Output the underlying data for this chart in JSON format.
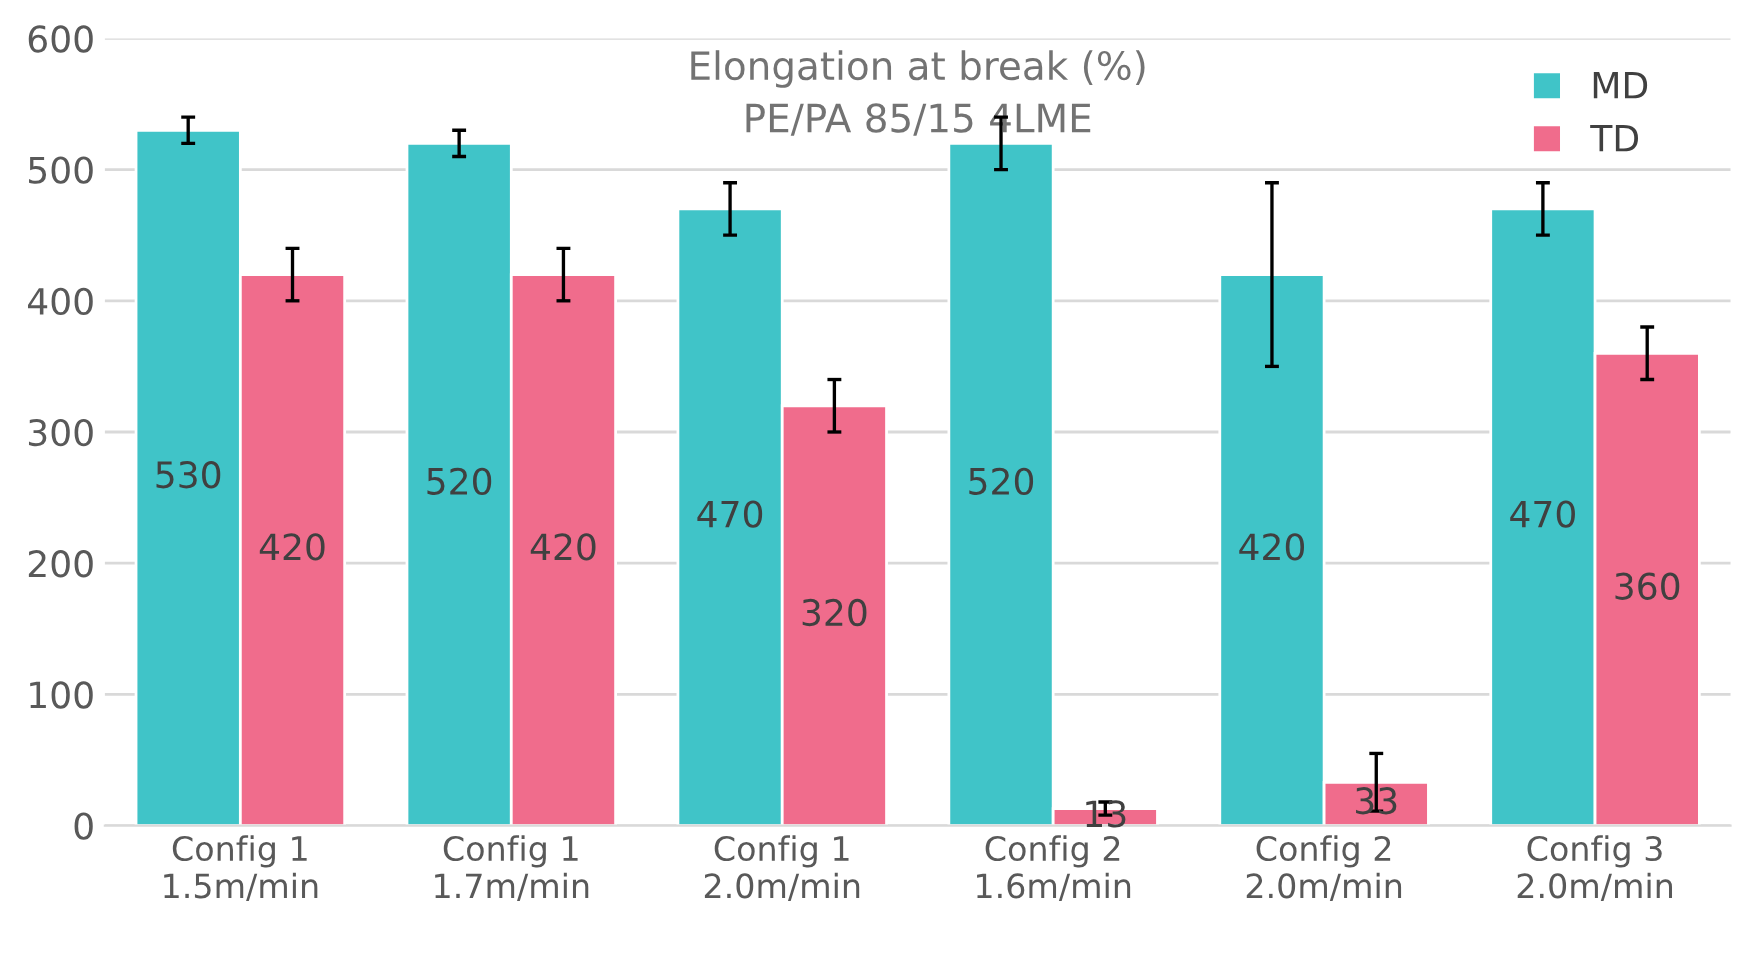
{
  "chart_data": {
    "type": "bar",
    "title": "Elongation at break (%)",
    "subtitle": "PE/PA 85/15 4LME",
    "categories": [
      "Config 1\n1.5m/min",
      "Config 1\n1.7m/min",
      "Config 1\n2.0m/min",
      "Config 2\n1.6m/min",
      "Config 2\n2.0m/min",
      "Config 3\n2.0m/min"
    ],
    "series": [
      {
        "name": "MD",
        "color": "#40c4c8",
        "values": [
          530,
          520,
          470,
          520,
          420,
          470
        ],
        "errors": [
          10,
          10,
          20,
          20,
          70,
          20
        ]
      },
      {
        "name": "TD",
        "color": "#f06c8c",
        "values": [
          420,
          420,
          320,
          13,
          33,
          360
        ],
        "errors": [
          20,
          20,
          20,
          5,
          22,
          20
        ]
      }
    ],
    "ylim": [
      0,
      600
    ],
    "yticks": [
      0,
      100,
      200,
      300,
      400,
      500,
      600
    ],
    "grid": "y",
    "legend": "top right",
    "data_labels": true
  }
}
